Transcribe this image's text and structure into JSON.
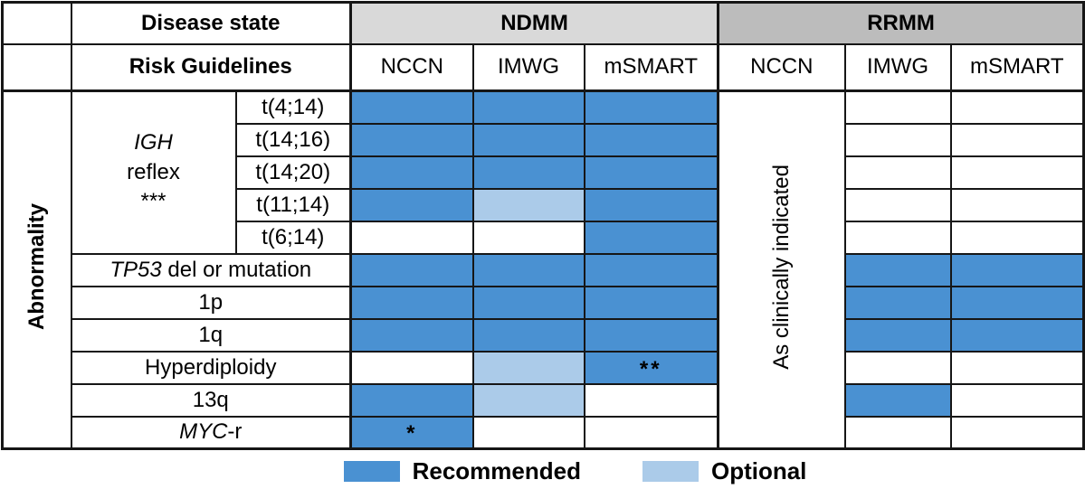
{
  "header": {
    "disease_state": "Disease state",
    "risk_guidelines": "Risk Guidelines",
    "ndmm": "NDMM",
    "rrmm": "RRMM",
    "ndmm_cols": [
      "NCCN",
      "IMWG",
      "mSMART"
    ],
    "rrmm_cols": [
      "NCCN",
      "IMWG",
      "mSMART"
    ]
  },
  "axis": {
    "abnormality": "Abnormality",
    "rrmm_nccn_note": "As clinically indicated"
  },
  "igh": {
    "line1": "IGH",
    "line2": "reflex",
    "line3": "***"
  },
  "legend": {
    "recommended": "Recommended",
    "optional": "Optional"
  },
  "colors": {
    "recommended": "#4a91d2",
    "optional": "#abcbe9",
    "ndmm_header": "#d9d9d9",
    "rrmm_header": "#bcbcbc"
  },
  "chart_data": {
    "type": "table",
    "title": "",
    "row_axis_label": "Abnormality",
    "column_groups": [
      {
        "label": "NDMM",
        "columns": [
          "NCCN",
          "IMWG",
          "mSMART"
        ]
      },
      {
        "label": "RRMM",
        "columns": [
          "NCCN",
          "IMWG",
          "mSMART"
        ]
      }
    ],
    "rrmm_nccn_merged_value": "As clinically indicated",
    "row_group_label": "IGH reflex ***",
    "legend": [
      {
        "state": "recommended",
        "label": "Recommended"
      },
      {
        "state": "optional",
        "label": "Optional"
      }
    ],
    "rows": [
      {
        "label_parts": [
          {
            "text": "t(4;14)"
          }
        ],
        "igh": true,
        "ndmm": [
          {
            "state": "recommended"
          },
          {
            "state": "recommended"
          },
          {
            "state": "recommended"
          }
        ],
        "rrmm": [
          {
            "state": "none"
          },
          {
            "state": "none"
          }
        ]
      },
      {
        "label_parts": [
          {
            "text": "t(14;16)"
          }
        ],
        "igh": true,
        "ndmm": [
          {
            "state": "recommended"
          },
          {
            "state": "recommended"
          },
          {
            "state": "recommended"
          }
        ],
        "rrmm": [
          {
            "state": "none"
          },
          {
            "state": "none"
          }
        ]
      },
      {
        "label_parts": [
          {
            "text": "t(14;20)"
          }
        ],
        "igh": true,
        "ndmm": [
          {
            "state": "recommended"
          },
          {
            "state": "recommended"
          },
          {
            "state": "recommended"
          }
        ],
        "rrmm": [
          {
            "state": "none"
          },
          {
            "state": "none"
          }
        ]
      },
      {
        "label_parts": [
          {
            "text": "t(11;14)"
          }
        ],
        "igh": true,
        "ndmm": [
          {
            "state": "recommended"
          },
          {
            "state": "optional"
          },
          {
            "state": "recommended"
          }
        ],
        "rrmm": [
          {
            "state": "none"
          },
          {
            "state": "none"
          }
        ]
      },
      {
        "label_parts": [
          {
            "text": "t(6;14)"
          }
        ],
        "igh": true,
        "ndmm": [
          {
            "state": "none"
          },
          {
            "state": "none"
          },
          {
            "state": "recommended"
          }
        ],
        "rrmm": [
          {
            "state": "none"
          },
          {
            "state": "none"
          }
        ]
      },
      {
        "label_parts": [
          {
            "text": "TP53",
            "italic": true
          },
          {
            "text": " del or mutation"
          }
        ],
        "ndmm": [
          {
            "state": "recommended"
          },
          {
            "state": "recommended"
          },
          {
            "state": "recommended"
          }
        ],
        "rrmm": [
          {
            "state": "recommended"
          },
          {
            "state": "recommended"
          }
        ]
      },
      {
        "label_parts": [
          {
            "text": "1p"
          }
        ],
        "ndmm": [
          {
            "state": "recommended"
          },
          {
            "state": "recommended"
          },
          {
            "state": "recommended"
          }
        ],
        "rrmm": [
          {
            "state": "recommended"
          },
          {
            "state": "recommended"
          }
        ]
      },
      {
        "label_parts": [
          {
            "text": "1q"
          }
        ],
        "ndmm": [
          {
            "state": "recommended"
          },
          {
            "state": "recommended"
          },
          {
            "state": "recommended"
          }
        ],
        "rrmm": [
          {
            "state": "recommended"
          },
          {
            "state": "recommended"
          }
        ]
      },
      {
        "label_parts": [
          {
            "text": "Hyperdiploidy"
          }
        ],
        "ndmm": [
          {
            "state": "none"
          },
          {
            "state": "optional"
          },
          {
            "state": "recommended",
            "note": "**"
          }
        ],
        "rrmm": [
          {
            "state": "none"
          },
          {
            "state": "none"
          }
        ]
      },
      {
        "label_parts": [
          {
            "text": "13q"
          }
        ],
        "ndmm": [
          {
            "state": "recommended"
          },
          {
            "state": "optional"
          },
          {
            "state": "none"
          }
        ],
        "rrmm": [
          {
            "state": "recommended"
          },
          {
            "state": "none"
          }
        ]
      },
      {
        "label_parts": [
          {
            "text": "MYC",
            "italic": true
          },
          {
            "text": "-r"
          }
        ],
        "ndmm": [
          {
            "state": "recommended",
            "note": "*"
          },
          {
            "state": "none"
          },
          {
            "state": "none"
          }
        ],
        "rrmm": [
          {
            "state": "none"
          },
          {
            "state": "none"
          }
        ]
      }
    ]
  }
}
